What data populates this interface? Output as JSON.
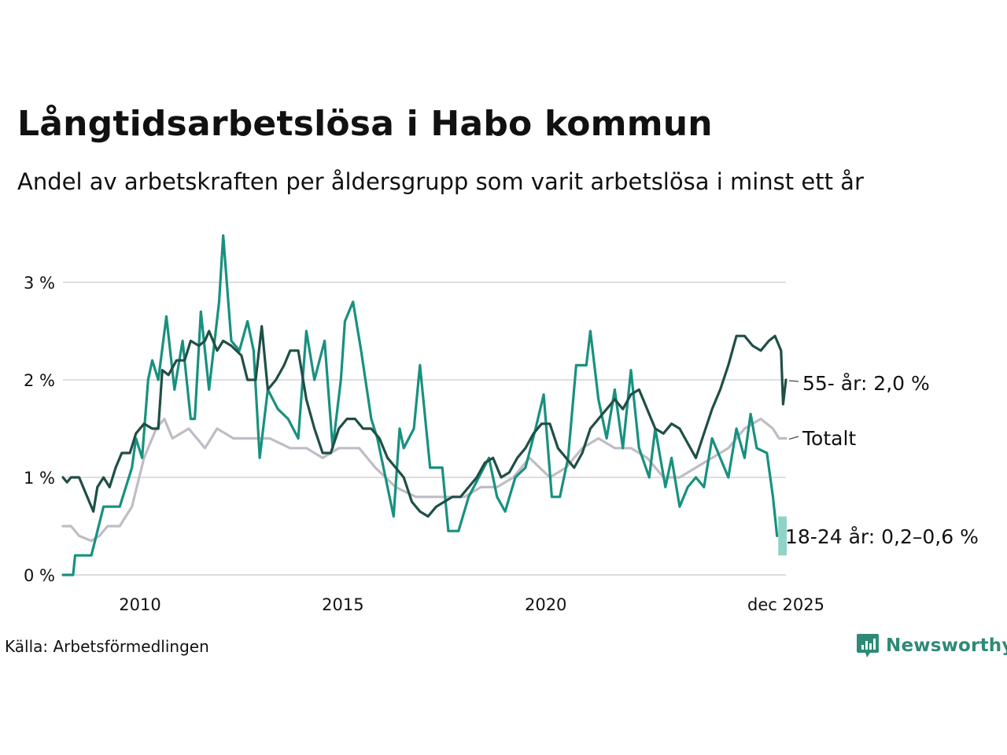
{
  "title": "Långtidsarbetslösa i Habo kommun",
  "subtitle": "Andel av arbetskraften per åldersgrupp som varit arbetslösa i minst ett år",
  "source": "Källa: Arbetsförmedlingen",
  "brand": "Newsworthy",
  "icons": {
    "logo": "bar-chart-logo-icon"
  },
  "colors": {
    "older": "#1f4f46",
    "youth": "#17917f",
    "youth_range": "#8fd3c7",
    "total": "#c0bcc6",
    "grid": "#dedede",
    "brand": "#2e8a76"
  },
  "chart_data": {
    "type": "line",
    "title": "Långtidsarbetslösa i Habo kommun",
    "xlabel": "",
    "ylabel": "",
    "xlim": [
      2008.1,
      2025.92
    ],
    "ylim": [
      0,
      3.5
    ],
    "y_ticks": [
      0,
      1,
      2,
      3
    ],
    "y_tick_labels": [
      "0 %",
      "1 %",
      "2 %",
      "3 %"
    ],
    "x_ticks": [
      2010,
      2015,
      2020,
      2025.92
    ],
    "x_tick_labels": [
      "2010",
      "2015",
      "2020",
      "dec 2025"
    ],
    "grid": true,
    "series": [
      {
        "name": "Totalt",
        "label": "Totalt",
        "points": [
          [
            2008.1,
            0.5
          ],
          [
            2008.3,
            0.5
          ],
          [
            2008.5,
            0.4
          ],
          [
            2008.8,
            0.35
          ],
          [
            2009.0,
            0.4
          ],
          [
            2009.2,
            0.5
          ],
          [
            2009.5,
            0.5
          ],
          [
            2009.8,
            0.7
          ],
          [
            2010.1,
            1.2
          ],
          [
            2010.4,
            1.5
          ],
          [
            2010.6,
            1.6
          ],
          [
            2010.8,
            1.4
          ],
          [
            2011.2,
            1.5
          ],
          [
            2011.6,
            1.3
          ],
          [
            2011.9,
            1.5
          ],
          [
            2012.3,
            1.4
          ],
          [
            2012.8,
            1.4
          ],
          [
            2013.2,
            1.4
          ],
          [
            2013.7,
            1.3
          ],
          [
            2014.1,
            1.3
          ],
          [
            2014.5,
            1.2
          ],
          [
            2014.9,
            1.3
          ],
          [
            2015.4,
            1.3
          ],
          [
            2015.8,
            1.1
          ],
          [
            2016.3,
            0.9
          ],
          [
            2016.8,
            0.8
          ],
          [
            2017.2,
            0.8
          ],
          [
            2017.6,
            0.8
          ],
          [
            2018.0,
            0.8
          ],
          [
            2018.4,
            0.9
          ],
          [
            2018.8,
            0.9
          ],
          [
            2019.2,
            1.0
          ],
          [
            2019.6,
            1.2
          ],
          [
            2020.1,
            1.0
          ],
          [
            2020.5,
            1.1
          ],
          [
            2020.9,
            1.3
          ],
          [
            2021.3,
            1.4
          ],
          [
            2021.7,
            1.3
          ],
          [
            2022.1,
            1.3
          ],
          [
            2022.5,
            1.2
          ],
          [
            2022.9,
            1.0
          ],
          [
            2023.3,
            1.0
          ],
          [
            2023.7,
            1.1
          ],
          [
            2024.1,
            1.2
          ],
          [
            2024.5,
            1.3
          ],
          [
            2024.9,
            1.5
          ],
          [
            2025.3,
            1.6
          ],
          [
            2025.6,
            1.5
          ],
          [
            2025.75,
            1.4
          ],
          [
            2025.92,
            1.4
          ]
        ]
      },
      {
        "name": "18-24 år",
        "label": "18-24 år: 0,2–0,6 %",
        "points": [
          [
            2008.1,
            0.0
          ],
          [
            2008.35,
            0.0
          ],
          [
            2008.4,
            0.2
          ],
          [
            2008.7,
            0.2
          ],
          [
            2008.8,
            0.2
          ],
          [
            2009.1,
            0.7
          ],
          [
            2009.5,
            0.7
          ],
          [
            2009.8,
            1.1
          ],
          [
            2009.9,
            1.4
          ],
          [
            2010.05,
            1.2
          ],
          [
            2010.2,
            2.0
          ],
          [
            2010.3,
            2.2
          ],
          [
            2010.45,
            2.0
          ],
          [
            2010.65,
            2.65
          ],
          [
            2010.85,
            1.9
          ],
          [
            2011.05,
            2.4
          ],
          [
            2011.25,
            1.6
          ],
          [
            2011.35,
            1.6
          ],
          [
            2011.5,
            2.7
          ],
          [
            2011.7,
            1.9
          ],
          [
            2011.95,
            2.8
          ],
          [
            2012.05,
            3.48
          ],
          [
            2012.25,
            2.4
          ],
          [
            2012.45,
            2.3
          ],
          [
            2012.65,
            2.6
          ],
          [
            2012.8,
            2.3
          ],
          [
            2012.95,
            1.2
          ],
          [
            2013.15,
            1.9
          ],
          [
            2013.4,
            1.7
          ],
          [
            2013.65,
            1.6
          ],
          [
            2013.9,
            1.4
          ],
          [
            2014.1,
            2.5
          ],
          [
            2014.3,
            2.0
          ],
          [
            2014.55,
            2.4
          ],
          [
            2014.75,
            1.3
          ],
          [
            2014.95,
            2.0
          ],
          [
            2015.05,
            2.6
          ],
          [
            2015.25,
            2.8
          ],
          [
            2015.45,
            2.3
          ],
          [
            2015.7,
            1.6
          ],
          [
            2015.85,
            1.4
          ],
          [
            2016.1,
            0.9
          ],
          [
            2016.25,
            0.6
          ],
          [
            2016.4,
            1.5
          ],
          [
            2016.5,
            1.3
          ],
          [
            2016.75,
            1.5
          ],
          [
            2016.9,
            2.15
          ],
          [
            2017.15,
            1.1
          ],
          [
            2017.45,
            1.1
          ],
          [
            2017.6,
            0.45
          ],
          [
            2017.85,
            0.45
          ],
          [
            2018.1,
            0.8
          ],
          [
            2018.35,
            1.0
          ],
          [
            2018.6,
            1.2
          ],
          [
            2018.8,
            0.8
          ],
          [
            2019.0,
            0.65
          ],
          [
            2019.25,
            1.0
          ],
          [
            2019.5,
            1.1
          ],
          [
            2019.75,
            1.5
          ],
          [
            2019.95,
            1.85
          ],
          [
            2020.15,
            0.8
          ],
          [
            2020.35,
            0.8
          ],
          [
            2020.55,
            1.2
          ],
          [
            2020.75,
            2.15
          ],
          [
            2021.0,
            2.15
          ],
          [
            2021.1,
            2.5
          ],
          [
            2021.3,
            1.8
          ],
          [
            2021.5,
            1.4
          ],
          [
            2021.7,
            1.9
          ],
          [
            2021.9,
            1.3
          ],
          [
            2022.1,
            2.1
          ],
          [
            2022.3,
            1.3
          ],
          [
            2022.55,
            1.0
          ],
          [
            2022.7,
            1.5
          ],
          [
            2022.95,
            0.9
          ],
          [
            2023.1,
            1.2
          ],
          [
            2023.3,
            0.7
          ],
          [
            2023.5,
            0.9
          ],
          [
            2023.7,
            1.0
          ],
          [
            2023.9,
            0.9
          ],
          [
            2024.1,
            1.4
          ],
          [
            2024.3,
            1.2
          ],
          [
            2024.5,
            1.0
          ],
          [
            2024.7,
            1.5
          ],
          [
            2024.9,
            1.2
          ],
          [
            2025.05,
            1.65
          ],
          [
            2025.2,
            1.3
          ],
          [
            2025.45,
            1.25
          ],
          [
            2025.6,
            0.8
          ],
          [
            2025.7,
            0.4
          ]
        ]
      },
      {
        "name": "55- år",
        "label": "55- år: 2,0 %",
        "points": [
          [
            2008.1,
            1.0
          ],
          [
            2008.2,
            0.95
          ],
          [
            2008.3,
            1.0
          ],
          [
            2008.5,
            1.0
          ],
          [
            2008.7,
            0.8
          ],
          [
            2008.85,
            0.65
          ],
          [
            2008.95,
            0.9
          ],
          [
            2009.1,
            1.0
          ],
          [
            2009.25,
            0.9
          ],
          [
            2009.4,
            1.1
          ],
          [
            2009.55,
            1.25
          ],
          [
            2009.75,
            1.25
          ],
          [
            2009.9,
            1.45
          ],
          [
            2010.1,
            1.55
          ],
          [
            2010.3,
            1.5
          ],
          [
            2010.45,
            1.5
          ],
          [
            2010.55,
            2.1
          ],
          [
            2010.7,
            2.05
          ],
          [
            2010.9,
            2.2
          ],
          [
            2011.1,
            2.2
          ],
          [
            2011.25,
            2.4
          ],
          [
            2011.45,
            2.35
          ],
          [
            2011.6,
            2.4
          ],
          [
            2011.7,
            2.5
          ],
          [
            2011.9,
            2.3
          ],
          [
            2012.05,
            2.4
          ],
          [
            2012.25,
            2.35
          ],
          [
            2012.5,
            2.25
          ],
          [
            2012.65,
            2.0
          ],
          [
            2012.85,
            2.0
          ],
          [
            2013.0,
            2.55
          ],
          [
            2013.15,
            1.9
          ],
          [
            2013.35,
            2.0
          ],
          [
            2013.55,
            2.15
          ],
          [
            2013.7,
            2.3
          ],
          [
            2013.9,
            2.3
          ],
          [
            2014.1,
            1.8
          ],
          [
            2014.3,
            1.5
          ],
          [
            2014.5,
            1.25
          ],
          [
            2014.7,
            1.25
          ],
          [
            2014.9,
            1.5
          ],
          [
            2015.1,
            1.6
          ],
          [
            2015.3,
            1.6
          ],
          [
            2015.5,
            1.5
          ],
          [
            2015.7,
            1.5
          ],
          [
            2015.9,
            1.4
          ],
          [
            2016.1,
            1.2
          ],
          [
            2016.3,
            1.1
          ],
          [
            2016.5,
            1.0
          ],
          [
            2016.7,
            0.75
          ],
          [
            2016.9,
            0.65
          ],
          [
            2017.1,
            0.6
          ],
          [
            2017.3,
            0.7
          ],
          [
            2017.5,
            0.75
          ],
          [
            2017.7,
            0.8
          ],
          [
            2017.9,
            0.8
          ],
          [
            2018.1,
            0.9
          ],
          [
            2018.3,
            1.0
          ],
          [
            2018.5,
            1.15
          ],
          [
            2018.7,
            1.2
          ],
          [
            2018.9,
            1.0
          ],
          [
            2019.1,
            1.05
          ],
          [
            2019.3,
            1.2
          ],
          [
            2019.5,
            1.3
          ],
          [
            2019.7,
            1.45
          ],
          [
            2019.9,
            1.55
          ],
          [
            2020.1,
            1.55
          ],
          [
            2020.3,
            1.3
          ],
          [
            2020.5,
            1.2
          ],
          [
            2020.7,
            1.1
          ],
          [
            2020.9,
            1.25
          ],
          [
            2021.1,
            1.5
          ],
          [
            2021.3,
            1.6
          ],
          [
            2021.5,
            1.7
          ],
          [
            2021.7,
            1.8
          ],
          [
            2021.9,
            1.7
          ],
          [
            2022.1,
            1.85
          ],
          [
            2022.3,
            1.9
          ],
          [
            2022.5,
            1.7
          ],
          [
            2022.7,
            1.5
          ],
          [
            2022.9,
            1.45
          ],
          [
            2023.1,
            1.55
          ],
          [
            2023.3,
            1.5
          ],
          [
            2023.5,
            1.35
          ],
          [
            2023.7,
            1.2
          ],
          [
            2023.9,
            1.45
          ],
          [
            2024.1,
            1.7
          ],
          [
            2024.3,
            1.9
          ],
          [
            2024.5,
            2.15
          ],
          [
            2024.7,
            2.45
          ],
          [
            2024.9,
            2.45
          ],
          [
            2025.1,
            2.35
          ],
          [
            2025.3,
            2.3
          ],
          [
            2025.5,
            2.4
          ],
          [
            2025.65,
            2.45
          ],
          [
            2025.8,
            2.3
          ],
          [
            2025.85,
            1.75
          ],
          [
            2025.92,
            2.0
          ]
        ]
      }
    ],
    "range_band": {
      "name": "18-24 år osäkerhet",
      "x": [
        2025.75,
        2025.92
      ],
      "low": 0.2,
      "high": 0.6
    }
  }
}
